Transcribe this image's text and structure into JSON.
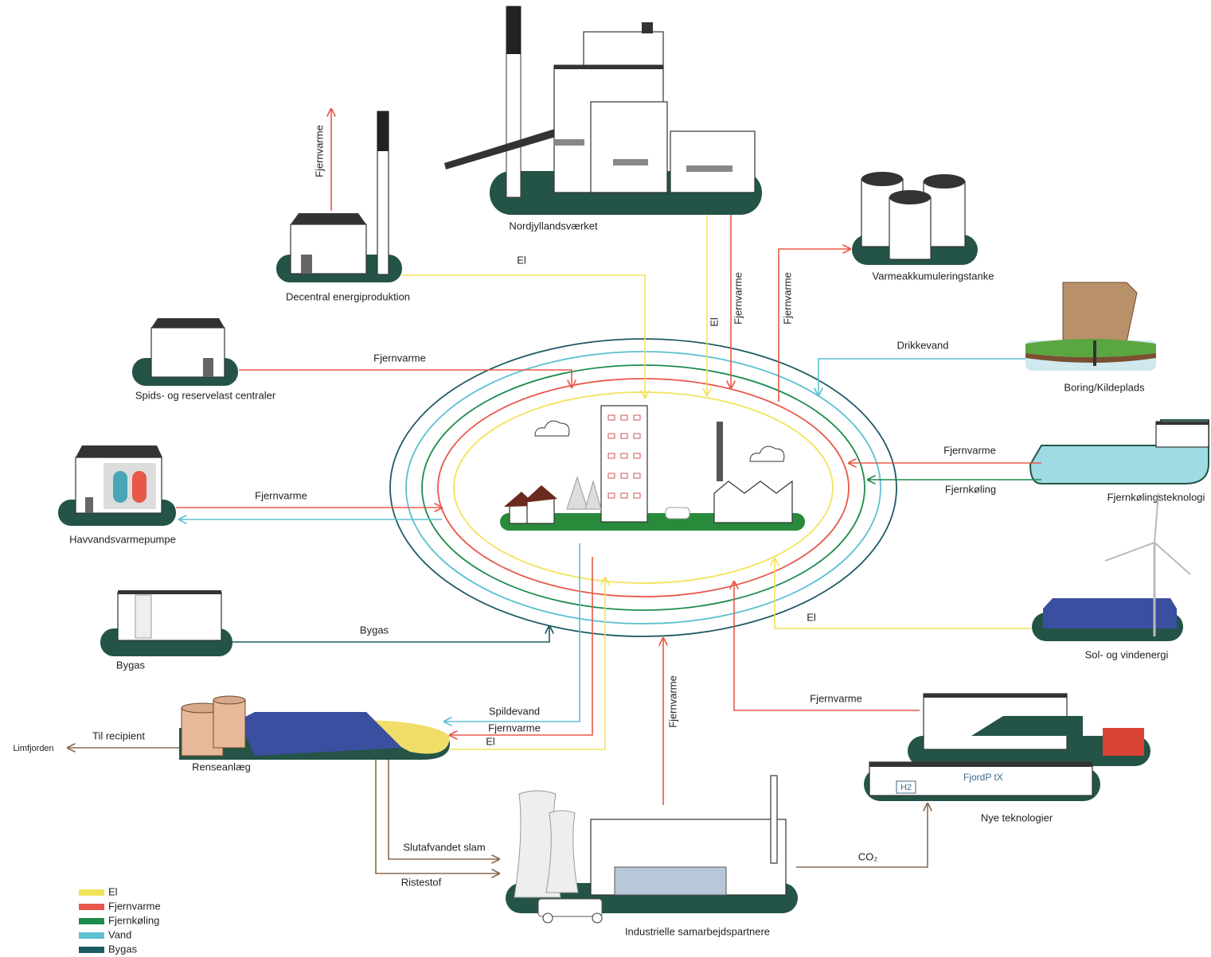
{
  "nodes": [
    {
      "label": "Nordjyllandsværket"
    },
    {
      "label": "Decentral energiproduktion"
    },
    {
      "label": "Varmeakkumuleringstanke"
    },
    {
      "label": "Spids- og reservelast centraler"
    },
    {
      "label": "Boring/Kildeplads"
    },
    {
      "label": "Havvandsvarmepumpe"
    },
    {
      "label": "Fjernkølingsteknologi"
    },
    {
      "label": "Bygas"
    },
    {
      "label": "Sol- og vindenergi"
    },
    {
      "label": "Renseanlæg"
    },
    {
      "label": "Nye teknologier"
    },
    {
      "label": "Industrielle samarbejdspartnere"
    },
    {
      "label": "Limfjorden"
    }
  ],
  "flows": [
    {
      "label": "El",
      "color": "#f2e35c"
    },
    {
      "label": "Fjernvarme",
      "color": "#e8584a"
    },
    {
      "label": "El",
      "color": "#f2e35c"
    },
    {
      "label": "Fjernvarme",
      "color": "#e8584a"
    },
    {
      "label": "Fjernvarme",
      "color": "#e8584a"
    },
    {
      "label": "Fjernvarme",
      "color": "#e8584a"
    },
    {
      "label": "Drikkevand",
      "color": "#5bc0d0"
    },
    {
      "label": "Fjernvarme",
      "color": "#e8584a"
    },
    {
      "label": "Fjernkøling",
      "color": "#1e8c4e"
    },
    {
      "label": "Fjernvarme",
      "color": "#e8584a"
    },
    {
      "label": "El",
      "color": "#f2e35c"
    },
    {
      "label": "Bygas",
      "color": "#1d5a63"
    },
    {
      "label": "Fjernvarme",
      "color": "#e8584a"
    },
    {
      "label": "Fjernvarme",
      "color": "#e8584a"
    },
    {
      "label": "Spildevand",
      "color": "#5bc0d0"
    },
    {
      "label": "Fjernvarme",
      "color": "#e8584a"
    },
    {
      "label": "El",
      "color": "#f2e35c"
    },
    {
      "label": "Til recipient",
      "color": "#8a6a4e"
    },
    {
      "label": "Slutafvandet slam",
      "color": "#8a6a4e"
    },
    {
      "label": "Ristestof",
      "color": "#8a6a4e"
    },
    {
      "label": "CO₂",
      "color": "#8a6a4e"
    }
  ],
  "badges": [
    "H2",
    "FjordP tX"
  ],
  "legend": [
    {
      "label": "El",
      "color": "#f2e35c"
    },
    {
      "label": "Fjernvarme",
      "color": "#e8584a"
    },
    {
      "label": "Fjernkøling",
      "color": "#1e8c4e"
    },
    {
      "label": "Vand",
      "color": "#5bc0d0"
    },
    {
      "label": "Bygas",
      "color": "#1d5a63"
    }
  ]
}
